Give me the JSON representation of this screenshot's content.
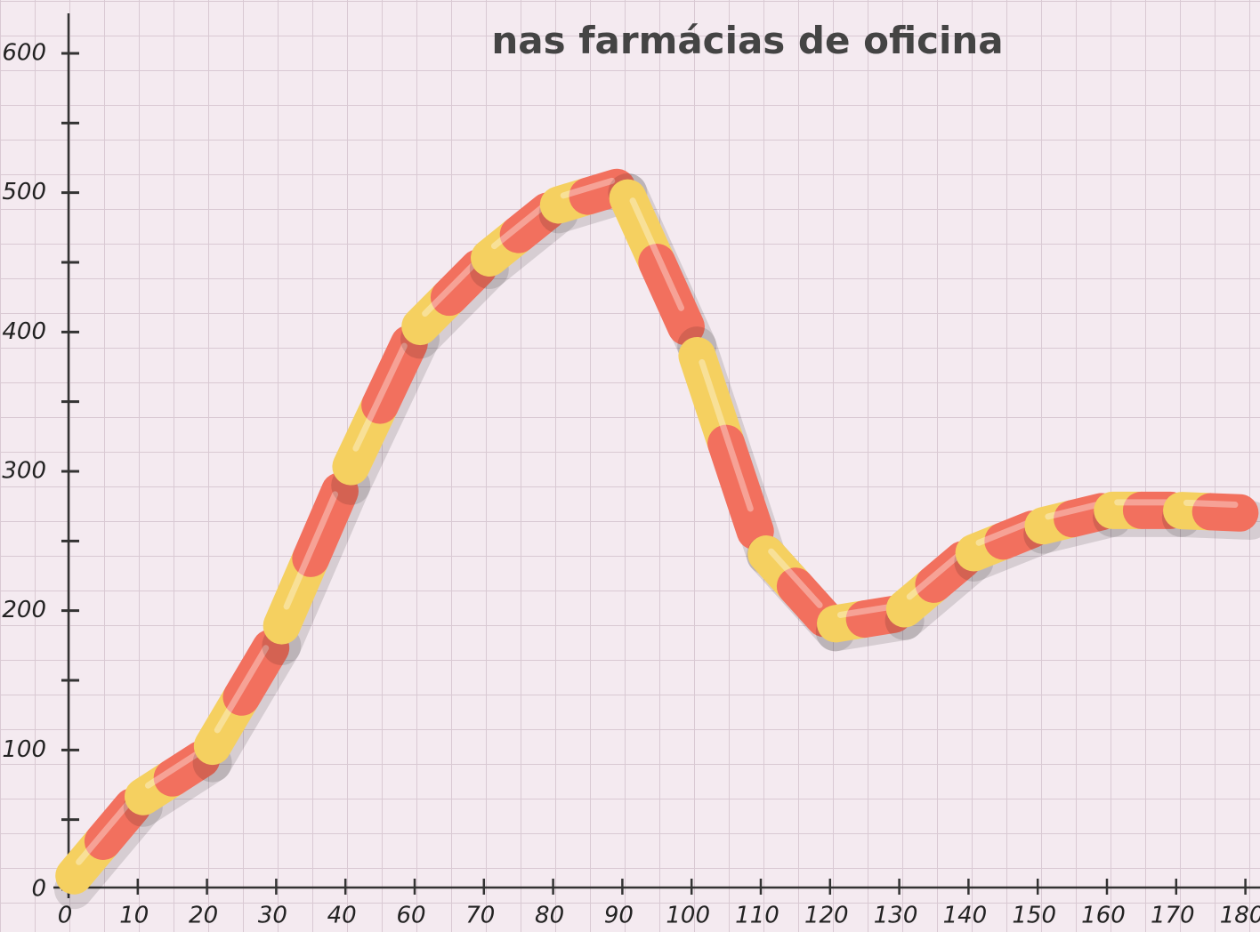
{
  "chart_data": {
    "type": "line",
    "title": "nas farmácias de oficina",
    "categories": [
      "0",
      "10",
      "20",
      "30",
      "40",
      "60",
      "70",
      "80",
      "90",
      "100",
      "110",
      "120",
      "130",
      "140",
      "150",
      "160",
      "170",
      "180"
    ],
    "series": [
      {
        "values": [
          5,
          64,
          96,
          180,
          295,
          400,
          450,
          490,
          505,
          395,
          245,
          190,
          198,
          240,
          260,
          272,
          272,
          270
        ],
        "color": "#f5d060",
        "cap_color": "#f2705e"
      }
    ],
    "ylim": [
      0,
      600
    ],
    "yticks": [
      0,
      100,
      200,
      300,
      400,
      500,
      600
    ],
    "minor_yticks": [
      50,
      150,
      250,
      350,
      450,
      550
    ],
    "grid": true
  }
}
